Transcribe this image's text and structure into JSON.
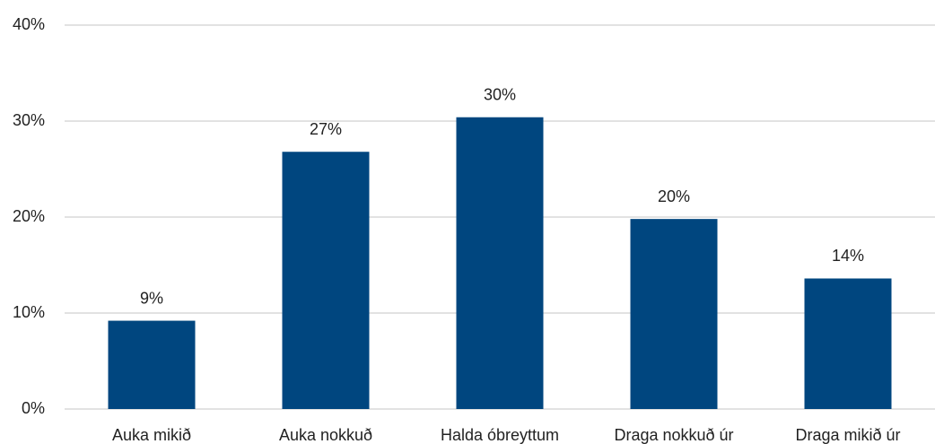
{
  "chart_data": {
    "type": "bar",
    "categories": [
      "Auka mikið",
      "Auka nokkuð",
      "Halda óbreyttum",
      "Draga nokkuð úr",
      "Draga mikið úr"
    ],
    "values": [
      9.2,
      26.8,
      30.4,
      19.8,
      13.6
    ],
    "value_labels": [
      "9%",
      "27%",
      "30%",
      "20%",
      "14%"
    ],
    "color": "#00467f",
    "ylim": [
      0,
      40
    ],
    "yticks": [
      {
        "value": 0,
        "label": "0%"
      },
      {
        "value": 10,
        "label": "10%"
      },
      {
        "value": 20,
        "label": "20%"
      },
      {
        "value": 30,
        "label": "30%"
      },
      {
        "value": 40,
        "label": "40%"
      }
    ],
    "grid": true
  }
}
